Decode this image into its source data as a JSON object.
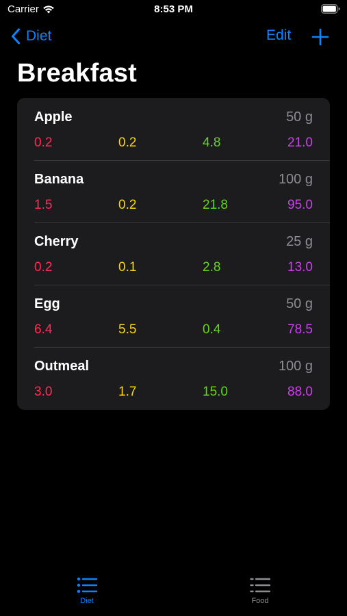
{
  "status_bar": {
    "carrier": "Carrier",
    "time": "8:53 PM"
  },
  "nav": {
    "back_label": "Diet",
    "edit_label": "Edit"
  },
  "page": {
    "title": "Breakfast"
  },
  "colors": {
    "accent": "#0a84ff",
    "protein": "#ff2d55",
    "fat": "#ffd60a",
    "carbs": "#66d41e",
    "calories": "#cf3ef0",
    "secondary_text": "#8d8d93"
  },
  "foods": [
    {
      "name": "Apple",
      "weight": "50 g",
      "protein": "0.2",
      "fat": "0.2",
      "carbs": "4.8",
      "calories": "21.0"
    },
    {
      "name": "Banana",
      "weight": "100 g",
      "protein": "1.5",
      "fat": "0.2",
      "carbs": "21.8",
      "calories": "95.0"
    },
    {
      "name": "Cherry",
      "weight": "25 g",
      "protein": "0.2",
      "fat": "0.1",
      "carbs": "2.8",
      "calories": "13.0"
    },
    {
      "name": "Egg",
      "weight": "50 g",
      "protein": "6.4",
      "fat": "5.5",
      "carbs": "0.4",
      "calories": "78.5"
    },
    {
      "name": "Outmeal",
      "weight": "100 g",
      "protein": "3.0",
      "fat": "1.7",
      "carbs": "15.0",
      "calories": "88.0"
    }
  ],
  "tab_bar": {
    "tabs": [
      {
        "label": "Diet",
        "icon": "list-bullet-icon",
        "selected": true
      },
      {
        "label": "Food",
        "icon": "list-dash-icon",
        "selected": false
      }
    ]
  }
}
